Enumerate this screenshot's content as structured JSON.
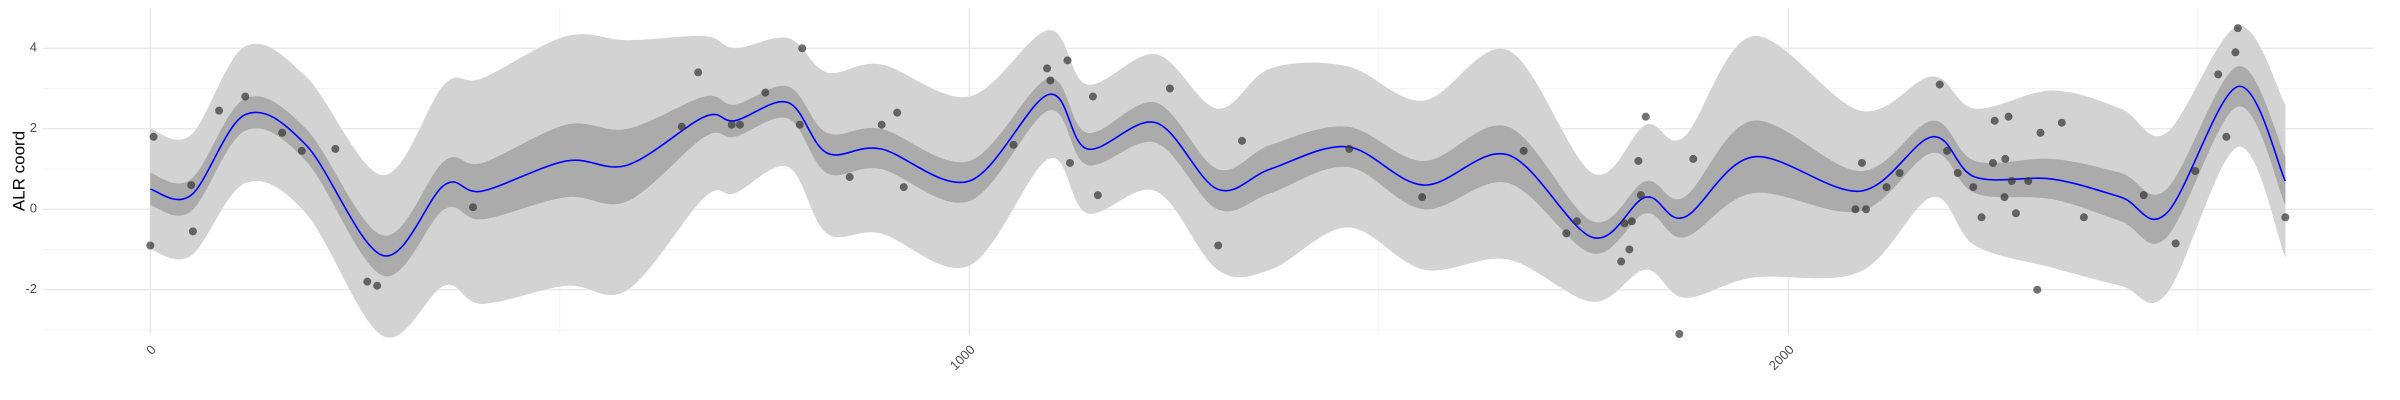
{
  "chart_data": {
    "type": "ribbon-line-scatter",
    "ylabel": "ALR coord",
    "xlim": [
      -131,
      2714
    ],
    "ylim": [
      -3.1,
      5.0
    ],
    "xticks": [
      0,
      1000,
      2000
    ],
    "yticks": [
      -2,
      0,
      2,
      4
    ],
    "xminor": [
      500,
      1500,
      2500
    ],
    "yminor": [
      -3,
      -1,
      1,
      3
    ],
    "grid": true,
    "curve": {
      "x": [
        0,
        50,
        116,
        190,
        284,
        359,
        405,
        508,
        583,
        677,
        714,
        779,
        826,
        892,
        1000,
        1097,
        1144,
        1228,
        1303,
        1368,
        1462,
        1555,
        1658,
        1761,
        1826,
        1873,
        1957,
        2088,
        2176,
        2228,
        2322,
        2406,
        2462,
        2549,
        2607
      ],
      "values": [
        0.5,
        0.35,
        2.35,
        1.6,
        -1.15,
        0.6,
        0.45,
        1.2,
        1.1,
        2.3,
        2.2,
        2.65,
        1.4,
        1.5,
        0.7,
        2.85,
        1.5,
        2.15,
        0.5,
        1.0,
        1.55,
        0.6,
        1.35,
        -0.7,
        0.3,
        -0.2,
        1.3,
        0.45,
        1.8,
        0.8,
        0.75,
        0.3,
        -0.1,
        3.05,
        0.7
      ],
      "color": "#0000ff",
      "ribbons": [
        {
          "color": "#d3d3d3",
          "lower": [
            -1.0,
            -1.15,
            0.65,
            -0.1,
            -3.15,
            -1.9,
            -2.35,
            -1.9,
            -2.0,
            0.3,
            0.4,
            1.05,
            -0.6,
            -0.6,
            -1.4,
            1.25,
            -0.1,
            0.45,
            -1.5,
            -1.5,
            -0.45,
            -1.5,
            -1.25,
            -2.3,
            -1.5,
            -2.2,
            -1.7,
            -1.55,
            0.3,
            -0.9,
            -1.45,
            -1.9,
            -2.1,
            1.55,
            -1.2
          ],
          "upper": [
            2.0,
            1.85,
            4.05,
            3.3,
            0.85,
            3.1,
            3.25,
            4.3,
            4.2,
            4.3,
            4.0,
            4.25,
            3.4,
            3.6,
            2.8,
            4.45,
            3.1,
            3.85,
            2.5,
            3.5,
            3.55,
            2.7,
            3.95,
            0.9,
            2.1,
            1.8,
            4.3,
            2.45,
            3.3,
            2.5,
            2.95,
            2.5,
            1.9,
            4.55,
            2.6
          ]
        },
        {
          "color": "#ababab",
          "lower": [
            0.1,
            -0.05,
            1.95,
            1.2,
            -1.65,
            0,
            -0.25,
            0.3,
            0.2,
            1.8,
            1.8,
            2.25,
            0.9,
            1.0,
            0.2,
            2.45,
            1.1,
            1.65,
            0,
            0.4,
            1.05,
            0,
            0.65,
            -1.1,
            -0.1,
            -0.7,
            0.4,
            -0.05,
            1.4,
            0.4,
            0.25,
            -0.3,
            -0.7,
            2.55,
            0.1
          ],
          "upper": [
            0.9,
            0.75,
            2.75,
            2.0,
            -0.65,
            1.2,
            1.15,
            2.1,
            2.0,
            2.8,
            2.6,
            3.05,
            1.9,
            2.0,
            1.2,
            3.25,
            1.9,
            2.65,
            1.0,
            1.6,
            2.05,
            1.2,
            2.05,
            -0.3,
            0.7,
            0.3,
            2.2,
            0.95,
            2.2,
            1.2,
            1.25,
            0.9,
            0.5,
            3.55,
            1.3
          ]
        }
      ]
    },
    "points": {
      "color": "#333333",
      "x": [
        0,
        4,
        50,
        52,
        84,
        116,
        161,
        185,
        226,
        265,
        277,
        394,
        649,
        669,
        710,
        720,
        751,
        793,
        796,
        854,
        893,
        912,
        920,
        1054,
        1095,
        1099,
        1120,
        1123,
        1151,
        1157,
        1245,
        1304,
        1333,
        1464,
        1553,
        1677,
        1729,
        1742,
        1796,
        1800,
        1806,
        1809,
        1817,
        1820,
        1826,
        1867,
        1884,
        2082,
        2090,
        2095,
        2120,
        2136,
        2185,
        2194,
        2207,
        2226,
        2236,
        2250,
        2252,
        2264,
        2265,
        2269,
        2273,
        2278,
        2293,
        2304,
        2308,
        2334,
        2361,
        2434,
        2473,
        2497,
        2525,
        2535,
        2546,
        2549,
        2607
      ],
      "values": [
        -0.9,
        1.8,
        0.6,
        -0.55,
        2.45,
        2.8,
        1.9,
        1.45,
        1.5,
        -1.8,
        -1.9,
        0.05,
        2.05,
        3.4,
        2.1,
        2.1,
        2.9,
        2.1,
        4.0,
        0.8,
        2.1,
        2.4,
        0.55,
        1.6,
        3.5,
        3.2,
        3.7,
        1.15,
        2.8,
        0.35,
        3.0,
        -0.9,
        1.7,
        1.5,
        0.3,
        1.45,
        -0.6,
        -0.3,
        -1.3,
        -0.35,
        -1.0,
        -0.3,
        1.2,
        0.35,
        2.3,
        -3.1,
        1.25,
        0,
        1.15,
        0,
        0.55,
        0.9,
        3.1,
        1.45,
        0.9,
        0.55,
        -0.2,
        1.15,
        2.2,
        0.3,
        1.25,
        2.3,
        0.7,
        -0.1,
        0.7,
        -2.0,
        1.9,
        2.15,
        -0.2,
        0.35,
        -0.85,
        0.95,
        3.35,
        1.8,
        3.9,
        4.5,
        -0.2
      ]
    }
  }
}
